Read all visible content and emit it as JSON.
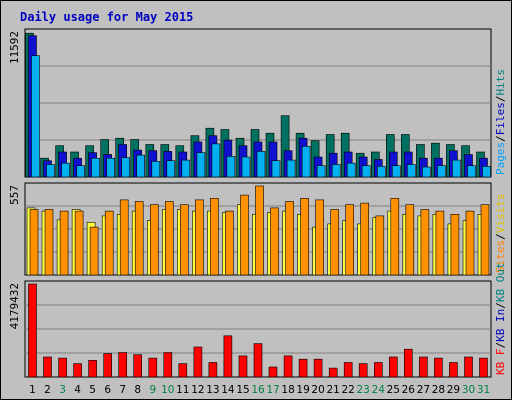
{
  "chart_data": {
    "type": "bar",
    "title": "Daily usage for May 2015",
    "categories": [
      "1",
      "2",
      "3",
      "4",
      "5",
      "6",
      "7",
      "8",
      "9",
      "10",
      "11",
      "12",
      "13",
      "14",
      "15",
      "16",
      "17",
      "18",
      "19",
      "20",
      "21",
      "22",
      "23",
      "24",
      "25",
      "26",
      "27",
      "28",
      "29",
      "30",
      "31"
    ],
    "weekend_categories": [
      "3",
      "9",
      "10",
      "16",
      "17",
      "23",
      "24",
      "30",
      "31"
    ],
    "panels": [
      {
        "id": "hits",
        "scale_label": "11592",
        "ymax": 11592,
        "legend": [
          {
            "text": "Pages",
            "color": "#00a0ff"
          },
          {
            "text": "/",
            "color": "#000000"
          },
          {
            "text": "Files",
            "color": "#0000c0"
          },
          {
            "text": "/",
            "color": "#000000"
          },
          {
            "text": "Hits",
            "color": "#008080"
          }
        ],
        "series": [
          {
            "name": "Hits",
            "color": "#007060",
            "values": [
              11500,
              1500,
              2500,
              2000,
              2500,
              3000,
              3100,
              3000,
              2600,
              2600,
              2500,
              3300,
              3900,
              3800,
              3100,
              3800,
              3500,
              4900,
              3500,
              2900,
              3400,
              3500,
              1900,
              2000,
              3400,
              3400,
              2600,
              2700,
              2600,
              2500,
              2000
            ]
          },
          {
            "name": "Files",
            "color": "#1010d0",
            "values": [
              11300,
              1300,
              2000,
              1500,
              1950,
              1800,
              2600,
              2150,
              2100,
              2050,
              2000,
              2800,
              3300,
              2950,
              2500,
              2800,
              2800,
              2100,
              3100,
              1600,
              1900,
              2000,
              1600,
              1400,
              2000,
              2000,
              1500,
              1500,
              2100,
              1800,
              1500
            ]
          },
          {
            "name": "Pages",
            "color": "#00b0f0",
            "values": [
              9700,
              1000,
              1100,
              900,
              1500,
              1500,
              1550,
              1750,
              1250,
              1300,
              1350,
              1950,
              2650,
              1650,
              1600,
              2050,
              1300,
              1350,
              2450,
              900,
              1000,
              1100,
              900,
              850,
              900,
              1000,
              800,
              900,
              1350,
              900,
              850
            ]
          }
        ]
      },
      {
        "id": "visits",
        "scale_label": "557",
        "ymax": 557,
        "legend": [
          {
            "text": "Sites",
            "color": "#ff8000"
          },
          {
            "text": "/",
            "color": "#000000"
          },
          {
            "text": "Visits",
            "color": "#e0c000"
          }
        ],
        "series": [
          {
            "name": "Visits",
            "color": "#ffff40",
            "values": [
              420,
              400,
              345,
              410,
              330,
              370,
              380,
              400,
              340,
              410,
              410,
              400,
              400,
              390,
              440,
              380,
              390,
              400,
              380,
              300,
              320,
              340,
              320,
              360,
              400,
              380,
              370,
              380,
              320,
              340,
              380
            ]
          },
          {
            "name": "Sites",
            "color": "#ff9000",
            "values": [
              410,
              410,
              400,
              400,
              300,
              400,
              470,
              460,
              440,
              460,
              440,
              470,
              480,
              400,
              500,
              557,
              420,
              460,
              480,
              470,
              410,
              440,
              450,
              370,
              480,
              440,
              410,
              400,
              380,
              400,
              440
            ]
          }
        ]
      },
      {
        "id": "kbytes",
        "scale_label": "4179432",
        "ymax": 4179432,
        "legend": [
          {
            "text": "KB F",
            "color": "#ff0000"
          },
          {
            "text": "/",
            "color": "#000000"
          },
          {
            "text": "KB In",
            "color": "#0000c0"
          },
          {
            "text": "/",
            "color": "#000000"
          },
          {
            "text": "KB Out",
            "color": "#008080"
          }
        ],
        "series": [
          {
            "name": "KB F",
            "color": "#ff0000",
            "values": [
              4179432,
              900000,
              850000,
              600000,
              750000,
              1050000,
              1100000,
              1000000,
              850000,
              1100000,
              600000,
              1350000,
              650000,
              1850000,
              950000,
              1500000,
              450000,
              950000,
              800000,
              800000,
              400000,
              650000,
              600000,
              650000,
              900000,
              1250000,
              900000,
              850000,
              650000,
              900000,
              850000
            ]
          }
        ]
      }
    ]
  }
}
